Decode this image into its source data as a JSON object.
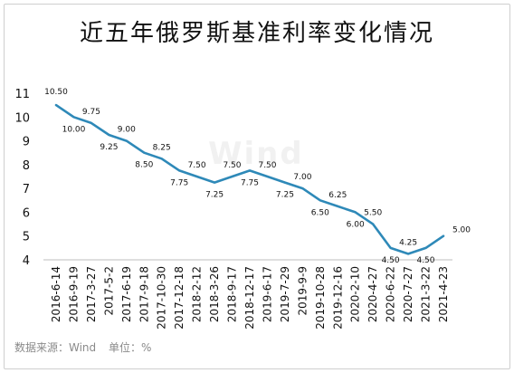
{
  "chart_data": {
    "type": "line",
    "title": "近五年俄罗斯基准利率变化情况",
    "xlabel": "",
    "ylabel": "",
    "ylim": [
      4,
      11
    ],
    "yticks": [
      4,
      5,
      6,
      7,
      8,
      9,
      10,
      11
    ],
    "grid": false,
    "legend": "none",
    "line_color": "#2e89b8",
    "x": [
      "2016-6-14",
      "2016-9-19",
      "2017-3-27",
      "2017-5-2",
      "2017-6-19",
      "2017-9-18",
      "2017-10-30",
      "2017-12-18",
      "2018-2-12",
      "2018-3-26",
      "2018-9-17",
      "2018-12-17",
      "2019-6-17",
      "2019-7-29",
      "2019-9-9",
      "2019-10-28",
      "2019-12-16",
      "2020-2-10",
      "2020-4-27",
      "2020-6-22",
      "2020-7-27",
      "2021-3-22",
      "2021-4-23"
    ],
    "values": [
      10.5,
      10.0,
      9.75,
      9.25,
      9.0,
      8.5,
      8.25,
      7.75,
      7.5,
      7.25,
      7.5,
      7.75,
      7.5,
      7.25,
      7.0,
      6.5,
      6.25,
      6.0,
      5.5,
      4.5,
      4.25,
      4.5,
      5.0
    ],
    "data_labels": [
      "10.50",
      "10.00",
      "9.75",
      "9.25",
      "9.00",
      "8.50",
      "8.25",
      "7.75",
      "7.50",
      "7.25",
      "7.50",
      "7.75",
      "7.50",
      "7.25",
      "7.00",
      "6.50",
      "6.25",
      "6.00",
      "5.50",
      "4.50",
      "4.25",
      "4.50",
      "5.00"
    ],
    "watermark": "Wind"
  },
  "footer": {
    "source": "数据来源：Wind",
    "unit": "单位：%"
  }
}
